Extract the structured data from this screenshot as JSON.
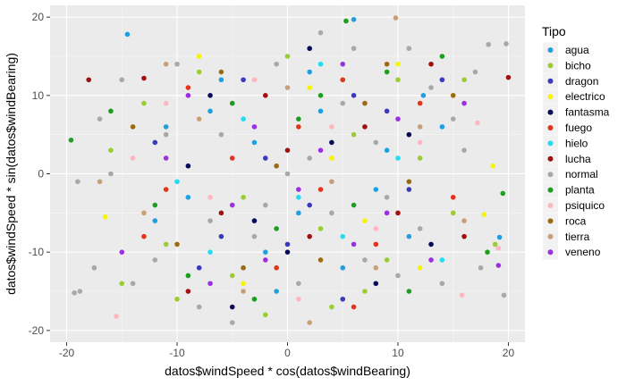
{
  "chart_data": {
    "type": "scatter",
    "xlabel": "datos$windSpeed * cos(datos$windBearing)",
    "ylabel": "datos$windSpeed * sin(datos$windBearing)",
    "xlim": [
      -21.5,
      21.5
    ],
    "ylim": [
      -21.5,
      21.5
    ],
    "x_ticks": [
      -20,
      -10,
      0,
      10,
      20
    ],
    "y_ticks": [
      -20,
      -10,
      0,
      10,
      20
    ],
    "grid": true,
    "legend_title": "Tipo",
    "legend_position": "right",
    "series": [
      {
        "name": "agua",
        "color": "#1f9fe0",
        "points": [
          [
            -14.5,
            17.8
          ],
          [
            -11,
            6
          ],
          [
            -6,
            12
          ],
          [
            -2,
            -10
          ],
          [
            3,
            8
          ],
          [
            6,
            19.7
          ],
          [
            9,
            3
          ],
          [
            11,
            -8
          ],
          [
            12.3,
            10
          ],
          [
            19.2,
            -8.1
          ],
          [
            -9,
            -3
          ],
          [
            1,
            -5
          ],
          [
            5,
            -12
          ],
          [
            -3,
            4
          ],
          [
            8,
            -2
          ],
          [
            -12,
            -6
          ],
          [
            14,
            6
          ],
          [
            -7,
            8
          ],
          [
            2,
            13
          ],
          [
            -1,
            -15
          ]
        ]
      },
      {
        "name": "bicho",
        "color": "#9acd32",
        "points": [
          [
            -15,
            -14
          ],
          [
            -10,
            -16
          ],
          [
            -5,
            -13
          ],
          [
            -8,
            13
          ],
          [
            0,
            15
          ],
          [
            4,
            -17
          ],
          [
            9,
            -11
          ],
          [
            12,
            2
          ],
          [
            15,
            -5
          ],
          [
            18.8,
            -9
          ],
          [
            -13,
            9
          ],
          [
            -4,
            -3
          ],
          [
            6,
            5
          ],
          [
            10,
            12
          ],
          [
            -16,
            3
          ],
          [
            16,
            12
          ],
          [
            -2,
            -18
          ],
          [
            3,
            -7
          ],
          [
            7,
            -15
          ],
          [
            -11,
            -9
          ]
        ]
      },
      {
        "name": "dragon",
        "color": "#3a3abf",
        "points": [
          [
            -12,
            4
          ],
          [
            -6,
            -8
          ],
          [
            -2,
            2
          ],
          [
            2,
            -4
          ],
          [
            6,
            10
          ],
          [
            11,
            -2
          ],
          [
            14,
            12
          ],
          [
            5,
            -16
          ],
          [
            -8,
            -12
          ],
          [
            0,
            -9
          ],
          [
            9,
            8
          ],
          [
            -4,
            12
          ]
        ]
      },
      {
        "name": "electrico",
        "color": "#f5f500",
        "points": [
          [
            -16.5,
            -5.5
          ],
          [
            -8,
            15
          ],
          [
            2,
            11
          ],
          [
            7,
            -6
          ],
          [
            10,
            14
          ],
          [
            17.8,
            -5.2
          ],
          [
            18.6,
            1
          ],
          [
            -4,
            -14
          ],
          [
            12,
            -12
          ],
          [
            4,
            2
          ]
        ]
      },
      {
        "name": "fantasma",
        "color": "#0a0a5a",
        "points": [
          [
            -9,
            1
          ],
          [
            -3,
            -6
          ],
          [
            0,
            -10
          ],
          [
            4,
            4
          ],
          [
            8,
            -14
          ],
          [
            13,
            -9
          ],
          [
            -7,
            10
          ],
          [
            2,
            16
          ],
          [
            11,
            5
          ],
          [
            -5,
            -17
          ]
        ]
      },
      {
        "name": "fuego",
        "color": "#e3341c",
        "points": [
          [
            -13,
            -8
          ],
          [
            -9,
            11
          ],
          [
            -5,
            2
          ],
          [
            -1,
            -12
          ],
          [
            3,
            -2
          ],
          [
            5,
            12
          ],
          [
            8,
            -9
          ],
          [
            12,
            9
          ],
          [
            15,
            -3
          ],
          [
            -11,
            -2
          ],
          [
            6,
            -17
          ],
          [
            1,
            6
          ]
        ]
      },
      {
        "name": "hielo",
        "color": "#22dcf2",
        "points": [
          [
            -10,
            -1
          ],
          [
            -4,
            7
          ],
          [
            1,
            -3
          ],
          [
            5,
            -8
          ],
          [
            10,
            2
          ],
          [
            14,
            -11
          ],
          [
            -7,
            -10
          ],
          [
            3,
            14
          ]
        ]
      },
      {
        "name": "lucha",
        "color": "#a01010",
        "points": [
          [
            -18,
            12
          ],
          [
            -13,
            12.2
          ],
          [
            -6,
            -5
          ],
          [
            -2,
            10
          ],
          [
            2,
            -8
          ],
          [
            7,
            6
          ],
          [
            10,
            -5
          ],
          [
            13,
            14
          ],
          [
            20,
            12.3
          ],
          [
            -9,
            -15
          ],
          [
            0,
            3
          ],
          [
            16,
            -8
          ]
        ]
      },
      {
        "name": "normal",
        "color": "#a8a8a8",
        "points": [
          [
            -19.3,
            -15.2
          ],
          [
            -18.8,
            -15
          ],
          [
            -17.5,
            -12
          ],
          [
            -19,
            -1
          ],
          [
            -17,
            7
          ],
          [
            -14,
            -14
          ],
          [
            -15,
            12
          ],
          [
            -12,
            -11
          ],
          [
            -10,
            14
          ],
          [
            -8,
            -17
          ],
          [
            -6,
            5
          ],
          [
            -3,
            -8
          ],
          [
            -1,
            14
          ],
          [
            1,
            -14
          ],
          [
            2,
            2
          ],
          [
            4,
            -5
          ],
          [
            6,
            16
          ],
          [
            8,
            4
          ],
          [
            10,
            -13
          ],
          [
            12,
            -7
          ],
          [
            13,
            11
          ],
          [
            15,
            7
          ],
          [
            17,
            13
          ],
          [
            18.2,
            16.5
          ],
          [
            19.8,
            16.6
          ],
          [
            19.6,
            -15.5
          ],
          [
            17.5,
            -12
          ],
          [
            -16,
            0
          ],
          [
            14,
            -14
          ],
          [
            -5,
            -19
          ],
          [
            3,
            18
          ],
          [
            11,
            16
          ],
          [
            -11,
            5
          ],
          [
            7,
            -11
          ],
          [
            -2,
            -4
          ],
          [
            5,
            9
          ],
          [
            0,
            0
          ],
          [
            -7,
            -6
          ],
          [
            9,
            -3
          ],
          [
            16,
            3
          ]
        ]
      },
      {
        "name": "planta",
        "color": "#1e9e1e",
        "points": [
          [
            -19.6,
            4.3
          ],
          [
            -16,
            8
          ],
          [
            -12,
            -4
          ],
          [
            -9,
            -13
          ],
          [
            -5,
            9
          ],
          [
            -1,
            -7
          ],
          [
            3,
            10
          ],
          [
            6,
            -4
          ],
          [
            9,
            13
          ],
          [
            11,
            -15
          ],
          [
            14,
            15
          ],
          [
            18.1,
            -10
          ],
          [
            19.5,
            -2.5
          ],
          [
            5.3,
            19.5
          ],
          [
            -3,
            -16
          ],
          [
            1,
            7
          ]
        ]
      },
      {
        "name": "psiquico",
        "color": "#ffb6c1",
        "points": [
          [
            -15.5,
            -18.2
          ],
          [
            -11,
            9
          ],
          [
            -7,
            -3
          ],
          [
            -3,
            12
          ],
          [
            1,
            -16
          ],
          [
            4,
            6
          ],
          [
            8,
            -7
          ],
          [
            12,
            4
          ],
          [
            17.2,
            6.5
          ],
          [
            19.1,
            -9.5
          ],
          [
            15.8,
            -15.5
          ],
          [
            -14,
            2
          ]
        ]
      },
      {
        "name": "roca",
        "color": "#9c6b10",
        "points": [
          [
            -14,
            6
          ],
          [
            -10,
            -9
          ],
          [
            -6,
            13
          ],
          [
            -1,
            1
          ],
          [
            3,
            -11
          ],
          [
            7,
            9
          ],
          [
            11,
            -1
          ],
          [
            15,
            10
          ],
          [
            -4,
            -12
          ],
          [
            9,
            14
          ]
        ]
      },
      {
        "name": "tierra",
        "color": "#c8a078",
        "points": [
          [
            -17,
            -1
          ],
          [
            -13,
            -5
          ],
          [
            -8,
            7
          ],
          [
            -4,
            -15
          ],
          [
            0,
            11
          ],
          [
            4,
            -1
          ],
          [
            8,
            -12
          ],
          [
            9.8,
            19.9
          ],
          [
            12,
            6
          ],
          [
            16,
            -6
          ],
          [
            -11,
            14
          ],
          [
            2,
            -19
          ]
        ]
      },
      {
        "name": "veneno",
        "color": "#9b30e0",
        "points": [
          [
            -15,
            -10
          ],
          [
            -11,
            2
          ],
          [
            -7,
            -14
          ],
          [
            -3,
            6
          ],
          [
            1,
            -2
          ],
          [
            5,
            14
          ],
          [
            9,
            -5
          ],
          [
            13,
            -11
          ],
          [
            16,
            9
          ],
          [
            19.1,
            -11.7
          ],
          [
            -9,
            10
          ],
          [
            -2,
            -11
          ],
          [
            6,
            -9
          ],
          [
            10,
            7
          ],
          [
            3,
            3
          ],
          [
            -5,
            -4
          ]
        ]
      }
    ]
  }
}
